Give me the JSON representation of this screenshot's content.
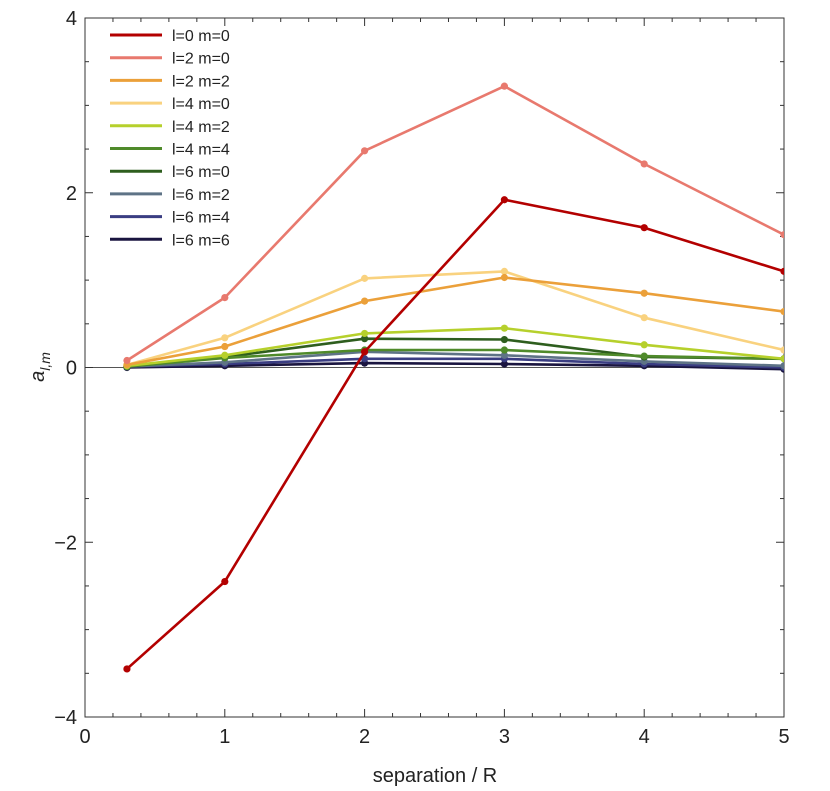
{
  "chart_data": {
    "type": "line",
    "xlabel": "separation / R",
    "ylabel": "a",
    "ylabel_subscript": "l,m",
    "xlim": [
      0,
      5
    ],
    "ylim": [
      -4,
      4
    ],
    "x_major_ticks": [
      0,
      1,
      2,
      3,
      4,
      5
    ],
    "y_major_ticks": [
      -4,
      -2,
      0,
      2,
      4
    ],
    "x_tick_labels": [
      "0",
      "1",
      "2",
      "3",
      "4",
      "5"
    ],
    "y_tick_labels": [
      "−4",
      "−2",
      "0",
      "2",
      "4"
    ],
    "grid": false,
    "frame": "box",
    "legend_position": "top-left",
    "x": [
      0.3,
      1,
      2,
      3,
      4,
      5
    ],
    "series": [
      {
        "name": "l=0 m=0",
        "color": "#b30000",
        "values": [
          -3.45,
          -2.45,
          0.18,
          1.92,
          1.6,
          1.1
        ]
      },
      {
        "name": "l=2 m=0",
        "color": "#e8796e",
        "values": [
          0.08,
          0.8,
          2.48,
          3.22,
          2.33,
          1.52
        ]
      },
      {
        "name": "l=2 m=2",
        "color": "#eba03a",
        "values": [
          0.03,
          0.24,
          0.76,
          1.03,
          0.85,
          0.64
        ]
      },
      {
        "name": "l=4 m=0",
        "color": "#f9d27f",
        "values": [
          0.03,
          0.34,
          1.02,
          1.1,
          0.57,
          0.2
        ]
      },
      {
        "name": "l=4 m=2",
        "color": "#b6d02c",
        "values": [
          0.02,
          0.14,
          0.39,
          0.45,
          0.26,
          0.1
        ]
      },
      {
        "name": "l=4 m=4",
        "color": "#4f8a2a",
        "values": [
          0.01,
          0.11,
          0.2,
          0.2,
          0.13,
          0.1
        ]
      },
      {
        "name": "l=6 m=0",
        "color": "#2e5e1e",
        "values": [
          0.01,
          0.12,
          0.33,
          0.32,
          0.12,
          0.1
        ]
      },
      {
        "name": "l=6 m=2",
        "color": "#5e7386",
        "values": [
          0.01,
          0.06,
          0.18,
          0.14,
          0.07,
          0.02
        ]
      },
      {
        "name": "l=6 m=4",
        "color": "#3a3d82",
        "values": [
          0.01,
          0.04,
          0.1,
          0.1,
          0.04,
          0.0
        ]
      },
      {
        "name": "l=6 m=6",
        "color": "#1a1540",
        "values": [
          0.0,
          0.02,
          0.05,
          0.04,
          0.02,
          -0.02
        ]
      }
    ]
  }
}
